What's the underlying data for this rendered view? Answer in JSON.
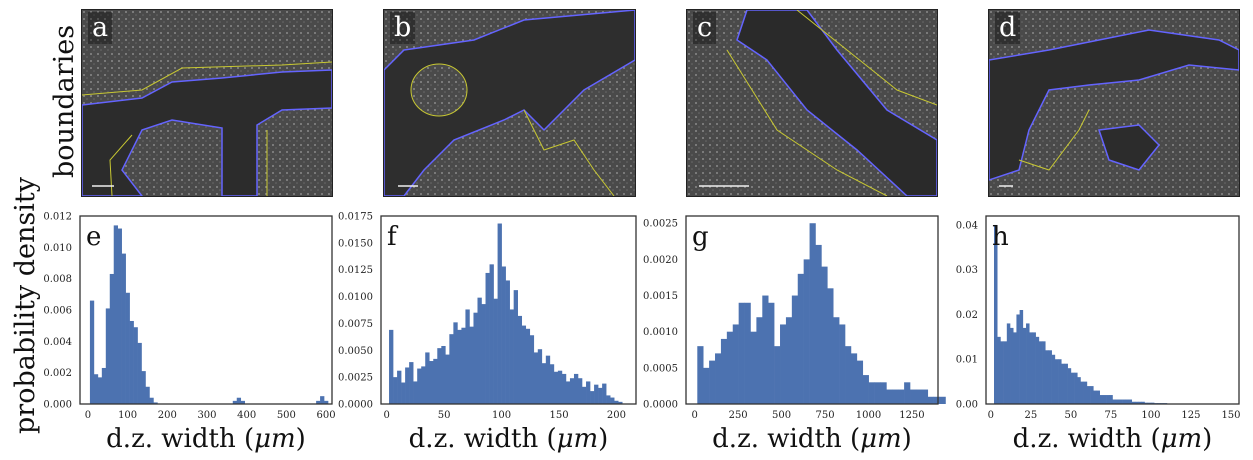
{
  "row_label": "boundaries",
  "y_axis_label": "probability density",
  "micrographs": [
    {
      "label": "a"
    },
    {
      "label": "b"
    },
    {
      "label": "c"
    },
    {
      "label": "d"
    }
  ],
  "colors": {
    "bar": "#4c72b0",
    "boundary_yellow": "#c8c832",
    "boundary_blue": "#6464ff"
  },
  "chart_data": [
    {
      "type": "bar",
      "panel_label": "e",
      "xlabel": "d.z. width ($\\mu m$)",
      "xlim": [
        -20,
        615
      ],
      "ylim": [
        0,
        0.012
      ],
      "xticks": [
        "0",
        "100",
        "200",
        "300",
        "400",
        "500",
        "600"
      ],
      "xtick_values": [
        0,
        100,
        200,
        300,
        400,
        500,
        600
      ],
      "yticks": [
        "0.000",
        "0.002",
        "0.004",
        "0.006",
        "0.008",
        "0.010",
        "0.012"
      ],
      "ytick_values": [
        0,
        0.002,
        0.004,
        0.006,
        0.008,
        0.01,
        0.012
      ],
      "bin_start": 5,
      "bin_width": 10,
      "values": [
        0.0066,
        0.0019,
        0.0017,
        0.0023,
        0.0061,
        0.0083,
        0.0114,
        0.0112,
        0.0096,
        0.0071,
        0.0053,
        0.0049,
        0.0039,
        0.0021,
        0.0011,
        0.0004,
        0.0001,
        0,
        0,
        0,
        0,
        0,
        0,
        0,
        0,
        0,
        0,
        0,
        0,
        0,
        0,
        0,
        0,
        0,
        0,
        0,
        0.0002,
        0.0004,
        0.0002,
        0,
        0,
        0,
        0,
        0,
        0,
        0,
        0,
        0,
        0,
        0,
        0,
        0,
        0,
        0,
        0,
        0,
        0,
        0.0002,
        0.0005,
        0.0002
      ]
    },
    {
      "type": "bar",
      "panel_label": "f",
      "xlabel": "d.z. width ($\\mu m$)",
      "xlim": [
        -5,
        217
      ],
      "ylim": [
        0,
        0.0175
      ],
      "xticks": [
        "0",
        "50",
        "100",
        "150",
        "200"
      ],
      "xtick_values": [
        0,
        50,
        100,
        150,
        200
      ],
      "yticks": [
        "0.0000",
        "0.0025",
        "0.0050",
        "0.0075",
        "0.0100",
        "0.0125",
        "0.0150",
        "0.0175"
      ],
      "ytick_values": [
        0,
        0.0025,
        0.005,
        0.0075,
        0.01,
        0.0125,
        0.015,
        0.0175
      ],
      "bin_start": 2,
      "bin_width": 3.5,
      "values": [
        0.0069,
        0.0025,
        0.0031,
        0.002,
        0.0034,
        0.0039,
        0.0021,
        0.0033,
        0.0035,
        0.0048,
        0.004,
        0.0042,
        0.0052,
        0.0054,
        0.0046,
        0.0065,
        0.0076,
        0.0069,
        0.0071,
        0.0088,
        0.0072,
        0.0085,
        0.0099,
        0.0093,
        0.0122,
        0.013,
        0.0098,
        0.0168,
        0.0128,
        0.0115,
        0.0088,
        0.0106,
        0.0082,
        0.0073,
        0.007,
        0.0064,
        0.0048,
        0.0051,
        0.0038,
        0.0045,
        0.0037,
        0.003,
        0.0031,
        0.0028,
        0.0021,
        0.0024,
        0.0028,
        0.0024,
        0.0016,
        0.0021,
        0.0012,
        0.0018,
        0.0015,
        0.0019,
        0.0008,
        0.0006,
        0.0003,
        0.0002
      ]
    },
    {
      "type": "bar",
      "panel_label": "g",
      "xlabel": "d.z. width ($\\mu m$)",
      "xlim": [
        -50,
        1400
      ],
      "ylim": [
        0,
        0.0026
      ],
      "xticks": [
        "0",
        "250",
        "500",
        "750",
        "1000",
        "1250"
      ],
      "xtick_values": [
        0,
        250,
        500,
        750,
        1000,
        1250
      ],
      "yticks": [
        "0.0000",
        "0.0005",
        "0.0010",
        "0.0015",
        "0.0020",
        "0.0025"
      ],
      "ytick_values": [
        0,
        0.0005,
        0.001,
        0.0015,
        0.002,
        0.0025
      ],
      "bin_start": 15,
      "bin_width": 34,
      "values": [
        0.0008,
        0.0005,
        0.0006,
        0.0007,
        0.0009,
        0.001,
        0.0011,
        0.0014,
        0.0014,
        0.001,
        0.0012,
        0.0015,
        0.0014,
        0.0008,
        0.0011,
        0.0012,
        0.0015,
        0.0018,
        0.002,
        0.0025,
        0.0022,
        0.0019,
        0.0016,
        0.0012,
        0.0011,
        0.0008,
        0.0007,
        0.0006,
        0.0004,
        0.0003,
        0.0003,
        0.0003,
        0.0002,
        0.0002,
        0.0002,
        0.0003,
        0.0002,
        0.0002,
        0.0002,
        0.0001,
        0.0001,
        0.0001
      ]
    },
    {
      "type": "bar",
      "panel_label": "h",
      "xlabel": "d.z. width ($\\mu m$)",
      "xlim": [
        -3,
        155
      ],
      "ylim": [
        0,
        0.042
      ],
      "xticks": [
        "0",
        "25",
        "50",
        "75",
        "100",
        "125",
        "150"
      ],
      "xtick_values": [
        0,
        25,
        50,
        75,
        100,
        125,
        150
      ],
      "yticks": [
        "0.00",
        "0.01",
        "0.02",
        "0.03",
        "0.04"
      ],
      "ytick_values": [
        0,
        0.01,
        0.02,
        0.03,
        0.04
      ],
      "bin_start": 2,
      "bin_width": 2,
      "values": [
        0.04,
        0.015,
        0.014,
        0.014,
        0.018,
        0.017,
        0.016,
        0.02,
        0.021,
        0.017,
        0.018,
        0.016,
        0.016,
        0.015,
        0.014,
        0.014,
        0.012,
        0.012,
        0.011,
        0.01,
        0.01,
        0.009,
        0.009,
        0.008,
        0.007,
        0.007,
        0.006,
        0.005,
        0.005,
        0.004,
        0.004,
        0.003,
        0.003,
        0.002,
        0.002,
        0.002,
        0.002,
        0.001,
        0.001,
        0.001,
        0.001,
        0.001,
        0.001,
        0.0005,
        0.0005,
        0.0005,
        0.0005,
        0.0003,
        0.0003,
        0.0003,
        0.0002,
        0.0002,
        0.0002,
        0.0002,
        0.0001,
        0.0001,
        0.0001
      ]
    }
  ]
}
